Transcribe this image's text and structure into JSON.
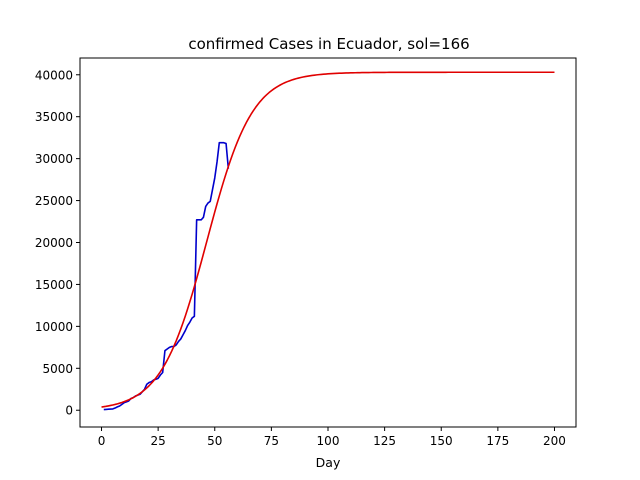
{
  "chart_data": {
    "type": "line",
    "title": "confirmed Cases in Ecuador, sol=166",
    "xlabel": "Day",
    "ylabel": "",
    "xlim": [
      -9.5,
      209.5
    ],
    "ylim": [
      -2000,
      42000
    ],
    "xticks": [
      0,
      25,
      50,
      75,
      100,
      125,
      150,
      175,
      200
    ],
    "yticks": [
      0,
      5000,
      10000,
      15000,
      20000,
      25000,
      30000,
      35000,
      40000
    ],
    "grid": false,
    "series": [
      {
        "color": "#0000cc",
        "style": "data",
        "x": [
          1,
          2,
          3,
          4,
          5,
          6,
          7,
          8,
          9,
          10,
          11,
          12,
          13,
          14,
          15,
          16,
          17,
          18,
          19,
          20,
          21,
          22,
          23,
          24,
          25,
          26,
          27,
          28,
          29,
          30,
          31,
          32,
          33,
          34,
          35,
          36,
          37,
          38,
          39,
          40,
          41,
          42,
          43,
          44,
          45,
          46,
          47,
          48,
          49,
          50,
          51,
          52,
          53,
          54,
          55,
          56
        ],
        "y": [
          80,
          100,
          120,
          140,
          160,
          260,
          400,
          500,
          700,
          900,
          1000,
          1100,
          1400,
          1500,
          1700,
          1800,
          1900,
          2200,
          2500,
          3100,
          3300,
          3400,
          3600,
          3700,
          3800,
          4200,
          4500,
          7100,
          7300,
          7500,
          7600,
          7600,
          7800,
          8200,
          8500,
          9000,
          9500,
          10100,
          10500,
          11000,
          11200,
          22700,
          22700,
          22700,
          23000,
          24300,
          24700,
          24900,
          26300,
          27700,
          29600,
          31900,
          31900,
          31900,
          31800,
          28800
        ]
      },
      {
        "color": "#e00000",
        "style": "fit",
        "model": "logistic",
        "capacity": 40300,
        "midpoint_day": 46.5,
        "rate": 0.1,
        "x_range": [
          0,
          200
        ]
      }
    ]
  }
}
